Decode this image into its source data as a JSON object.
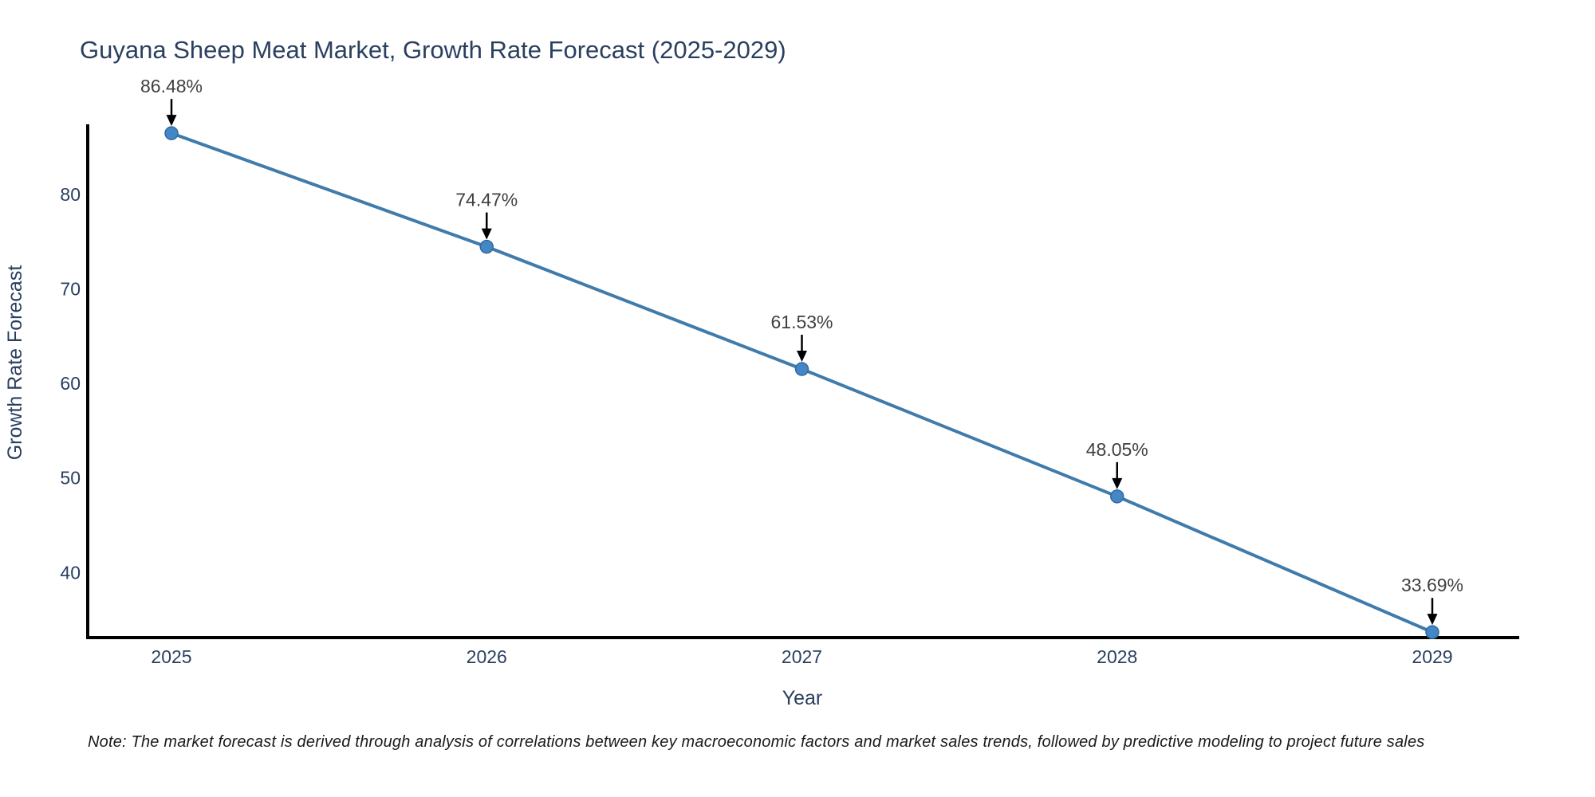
{
  "page": {
    "note": "Note: The market forecast is derived through analysis of correlations between key macroeconomic factors and market sales trends, followed by predictive modeling to project future sales"
  },
  "chart_data": {
    "type": "line",
    "title": "Guyana Sheep Meat Market, Growth Rate Forecast (2025-2029)",
    "xlabel": "Year",
    "ylabel": "Growth Rate Forecast",
    "x": [
      2025,
      2026,
      2027,
      2028,
      2029
    ],
    "values": [
      86.48,
      74.47,
      61.53,
      48.05,
      33.69
    ],
    "point_labels": [
      "86.48%",
      "74.47%",
      "61.53%",
      "48.05%",
      "33.69%"
    ],
    "yticks": [
      40,
      50,
      60,
      70,
      80
    ],
    "ylim": [
      33.1,
      87.2
    ],
    "grid": false,
    "legend": "none",
    "annotation_style": "label-above-with-black-arrow",
    "colors": {
      "line": "#3f7bab",
      "marker_fill": "#4387c7",
      "marker_edge": "#35699c",
      "axis_line": "#000000",
      "axis_text": "#2a3f5f",
      "annotation_text": "#404040",
      "arrow": "#000000",
      "background": "#ffffff"
    }
  }
}
